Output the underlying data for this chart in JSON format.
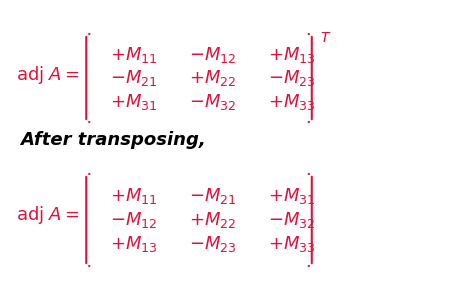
{
  "background_color": "#ffffff",
  "crimson_color": "#DC143C",
  "black_color": "#000000",
  "fig_width": 4.74,
  "fig_height": 3.02,
  "dpi": 100
}
